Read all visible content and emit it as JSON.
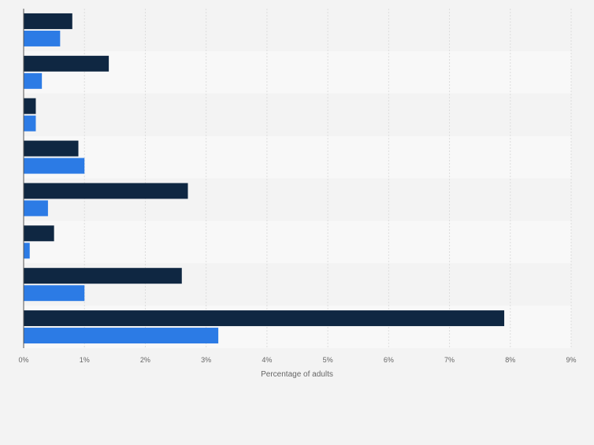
{
  "chart_data": {
    "type": "bar",
    "orientation": "horizontal",
    "title": "",
    "xlabel": "Percentage of adults",
    "ylabel": "",
    "xlim": [
      0,
      9
    ],
    "x_ticks": [
      "0%",
      "1%",
      "2%",
      "3%",
      "4%",
      "5%",
      "6%",
      "7%",
      "8%",
      "9%"
    ],
    "categories": [
      "",
      "",
      "",
      "",
      "",
      "",
      "",
      ""
    ],
    "series": [
      {
        "color": "#0f2742",
        "values": [
          0.8,
          1.4,
          0.2,
          0.9,
          2.7,
          0.5,
          2.6,
          7.9
        ]
      },
      {
        "color": "#2c7be5",
        "values": [
          0.6,
          0.3,
          0.2,
          1.0,
          0.4,
          0.1,
          1.0,
          3.2
        ]
      }
    ],
    "grid": true,
    "legend": "none"
  }
}
